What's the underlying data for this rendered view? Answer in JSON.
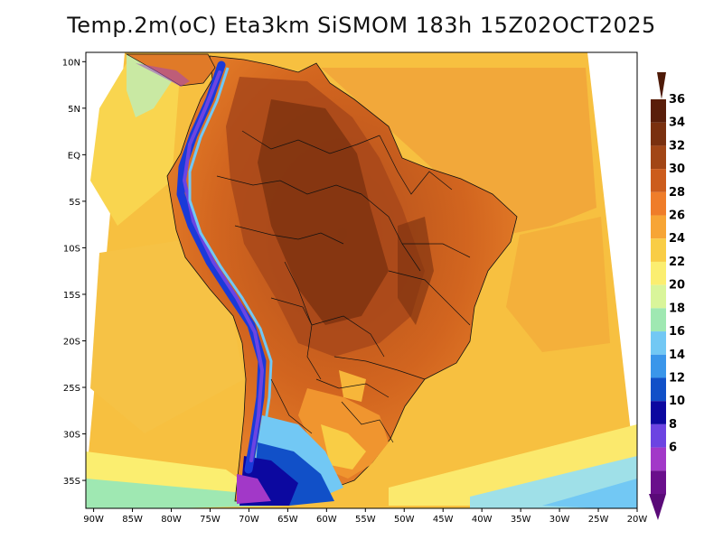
{
  "title": "Temp.2m(oC) Eta3km SiSMOM 183h 15Z02OCT2025",
  "map": {
    "variable": "2 m air temperature",
    "units": "oC",
    "region": "South America",
    "lon_range": [
      -91,
      -20
    ],
    "lat_range": [
      -38,
      11
    ],
    "lon_ticks": [
      "90W",
      "85W",
      "80W",
      "75W",
      "70W",
      "65W",
      "60W",
      "55W",
      "50W",
      "45W",
      "40W",
      "35W",
      "30W",
      "25W",
      "20W"
    ],
    "lat_ticks": [
      "10N",
      "5N",
      "EQ",
      "5S",
      "10S",
      "15S",
      "20S",
      "25S",
      "30S",
      "35S"
    ]
  },
  "colorbar": {
    "levels": [
      "36",
      "34",
      "32",
      "30",
      "28",
      "26",
      "24",
      "22",
      "20",
      "18",
      "16",
      "14",
      "12",
      "10",
      "8",
      "6"
    ],
    "colors": [
      "#5a1e0a",
      "#7a300f",
      "#a24616",
      "#cc5c1c",
      "#ef7d2a",
      "#f7a535",
      "#f9cd45",
      "#fbee70",
      "#d9f59a",
      "#9fe8b2",
      "#72c8f4",
      "#3a96ea",
      "#1150c8",
      "#0c08a0",
      "#6c44e2",
      "#a238c8",
      "#6a0f8c"
    ],
    "top_arrow_color": "#4e1a08",
    "bottom_arrow_color": "#5a0a78"
  },
  "fields": {
    "ocean": "#f8c845",
    "land_hot": "#d86a22",
    "land_very_hot": "#a8481a",
    "andes_cold": "#2a40d8",
    "south_cool": "#f29a33"
  }
}
